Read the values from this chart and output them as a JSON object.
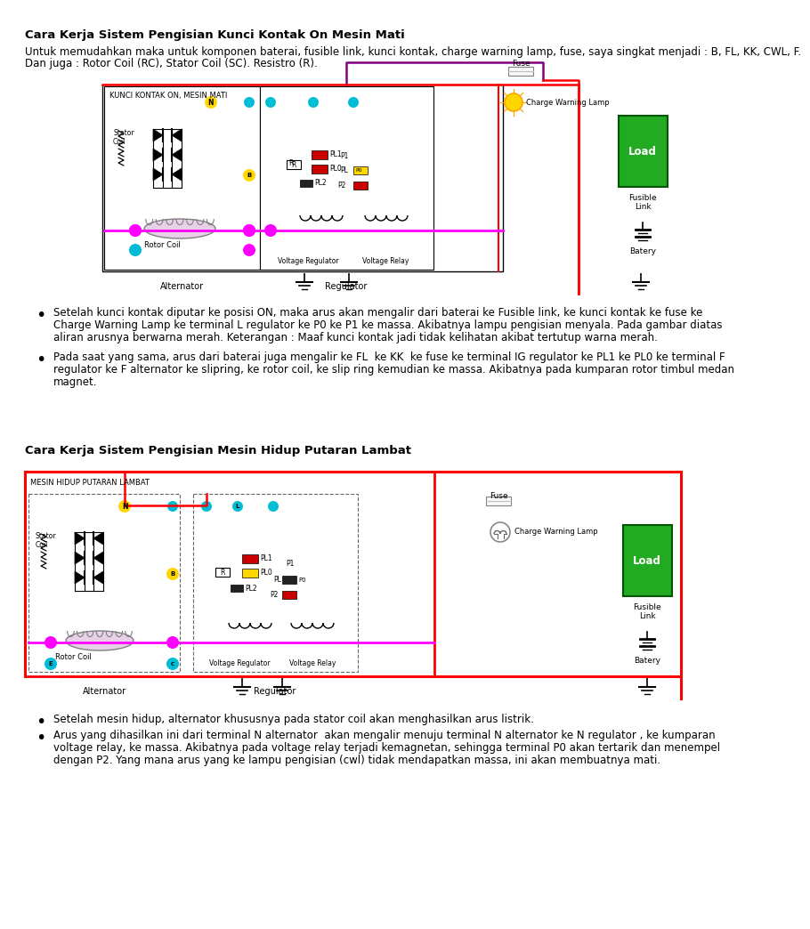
{
  "title1": "Cara Kerja Sistem Pengisian Kunci Kontak On Mesin Mati",
  "intro_line1": "Untuk memudahkan maka untuk komponen baterai, fusible link, kunci kontak, charge warning lamp, fuse, saya singkat menjadi : B, FL, KK, CWL, F.",
  "intro_line2": "Dan juga : Rotor Coil (RC), Stator Coil (SC). Resistro (R).",
  "diag1_label": "KUNCI KONTAK ON, MESIN MATI",
  "diag1_alt_label": "Alternator",
  "diag1_reg_label": "Regulator",
  "bullet1": "Setelah kunci kontak diputar ke posisi ON, maka arus akan mengalir dari baterai ke Fusible link, ke kunci kontak ke fuse ke",
  "bullet1b": "Charge Warning Lamp ke terminal L regulator ke P0 ke P1 ke massa. Akibatnya lampu pengisian menyala. Pada gambar diatas",
  "bullet1c": "aliran arusnya berwarna merah. Keterangan : Maaf kunci kontak jadi tidak kelihatan akibat tertutup warna merah.",
  "bullet2": "Pada saat yang sama, arus dari baterai juga mengalir ke FL  ke KK  ke fuse ke terminal IG regulator ke PL1 ke PL0 ke terminal F",
  "bullet2b": "regulator ke F alternator ke slipring, ke rotor coil, ke slip ring kemudian ke massa. Akibatnya pada kumparan rotor timbul medan",
  "bullet2c": "magnet.",
  "title2": "Cara Kerja Sistem Pengisian Mesin Hidup Putaran Lambat",
  "diag2_label": "MESIN HIDUP PUTARAN LAMBAT",
  "diag2_alt_label": "Alternator",
  "diag2_reg_label": "Regulator",
  "bullet3": "Setelah mesin hidup, alternator khususnya pada stator coil akan menghasilkan arus listrik.",
  "bullet4": "Arus yang dihasilkan ini dari terminal N alternator  akan mengalir menuju terminal N alternator ke N regulator , ke kumparan",
  "bullet4b": "voltage relay, ke massa. Akibatnya pada voltage relay terjadi kemagnetan, sehingga terminal P0 akan tertarik dan menempel",
  "bullet4c": "dengan P2. Yang mana arus yang ke lampu pengisian (cwl) tidak mendapatkan massa, ini akan membuatnya mati.",
  "fuse_label": "Fuse",
  "cwl_label": "Charge Warning Lamp",
  "fusible_label": "Fusible\nLink",
  "batery_label": "Batery",
  "load_label": "Load",
  "volt_reg_label": "Voltage Regulator",
  "volt_relay_label": "Voltage Relay",
  "stator_label": "Stator\nCoil",
  "rotor_label": "Rotor Coil",
  "R_label": "R",
  "PL1_label": "PL1",
  "PL0_label": "PL0",
  "PL2_label": "PL2",
  "P1_label": "P1",
  "P0_label": "P0",
  "P2_label": "P2",
  "PL_label": "PL",
  "N_label": "N"
}
